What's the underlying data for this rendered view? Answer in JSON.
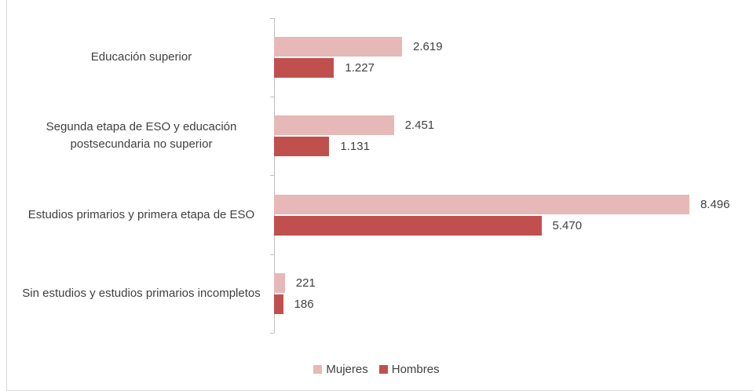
{
  "chart_data": {
    "type": "bar",
    "orientation": "horizontal",
    "categories": [
      "Educación superior",
      "Segunda etapa de ESO y educación postsecundaria no superior",
      "Estudios primarios y primera etapa de ESO",
      "Sin estudios y estudios primarios incompletos"
    ],
    "series": [
      {
        "name": "Mujeres",
        "color": "#e6b8b7",
        "values": [
          2619,
          2451,
          8496,
          221
        ],
        "value_labels": [
          "2.619",
          "2.451",
          "8.496",
          "221"
        ]
      },
      {
        "name": "Hombres",
        "color": "#c0504d",
        "values": [
          1227,
          1131,
          5470,
          186
        ],
        "value_labels": [
          "1.227",
          "1.131",
          "5.470",
          "186"
        ]
      }
    ],
    "xlim": [
      0,
      9000
    ],
    "legend": "bottom"
  }
}
